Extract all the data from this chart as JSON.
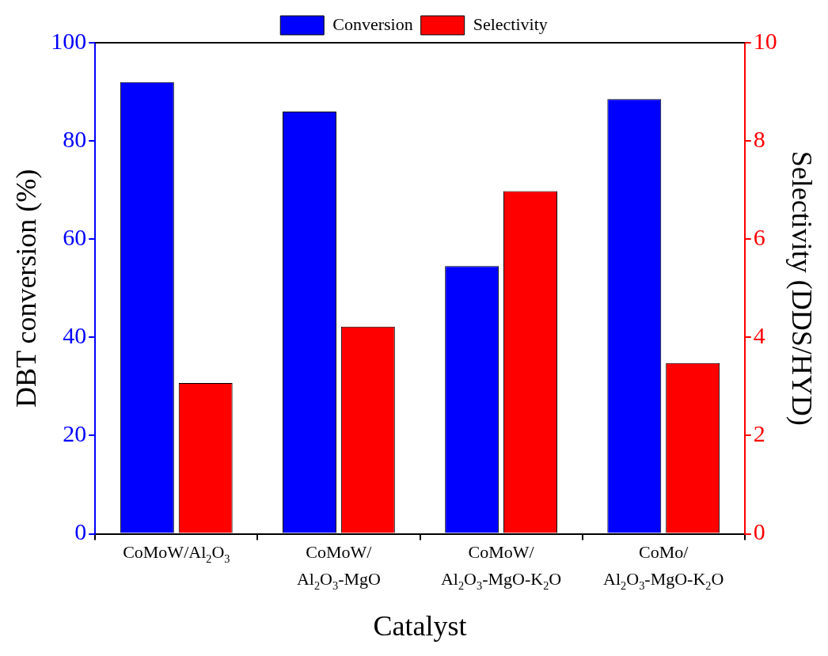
{
  "chart_data": {
    "type": "bar",
    "xlabel": "Catalyst",
    "ylabel": "DBT conversion (%)",
    "y2label": "Selectivity (DDS/HYD)",
    "categories": [
      "CoMoW/Al$_{2}$O$_{3}$",
      "CoMoW/\nAl$_{2}$O$_{3}$-MgO",
      "CoMoW/\nAl$_{2}$O$_{3}$-MgO-K$_{2}$O",
      "CoMo/\nAl$_{2}$O$_{3}$-MgO-K$_{2}$O"
    ],
    "series": [
      {
        "name": "Conversion",
        "color": "#0000ff",
        "values": [
          92,
          86,
          54.5,
          88.5
        ]
      },
      {
        "name": "Selectivity",
        "color": "#ff0000",
        "axis": "y2",
        "values": [
          3.07,
          4.22,
          6.98,
          3.48
        ]
      }
    ],
    "ylim": [
      0,
      100
    ],
    "yticks": [
      0,
      20,
      40,
      60,
      80,
      100
    ],
    "y2lim": [
      0,
      10
    ],
    "y2ticks": [
      0,
      2,
      4,
      6,
      8,
      10
    ],
    "grid": false,
    "legend": "top"
  }
}
